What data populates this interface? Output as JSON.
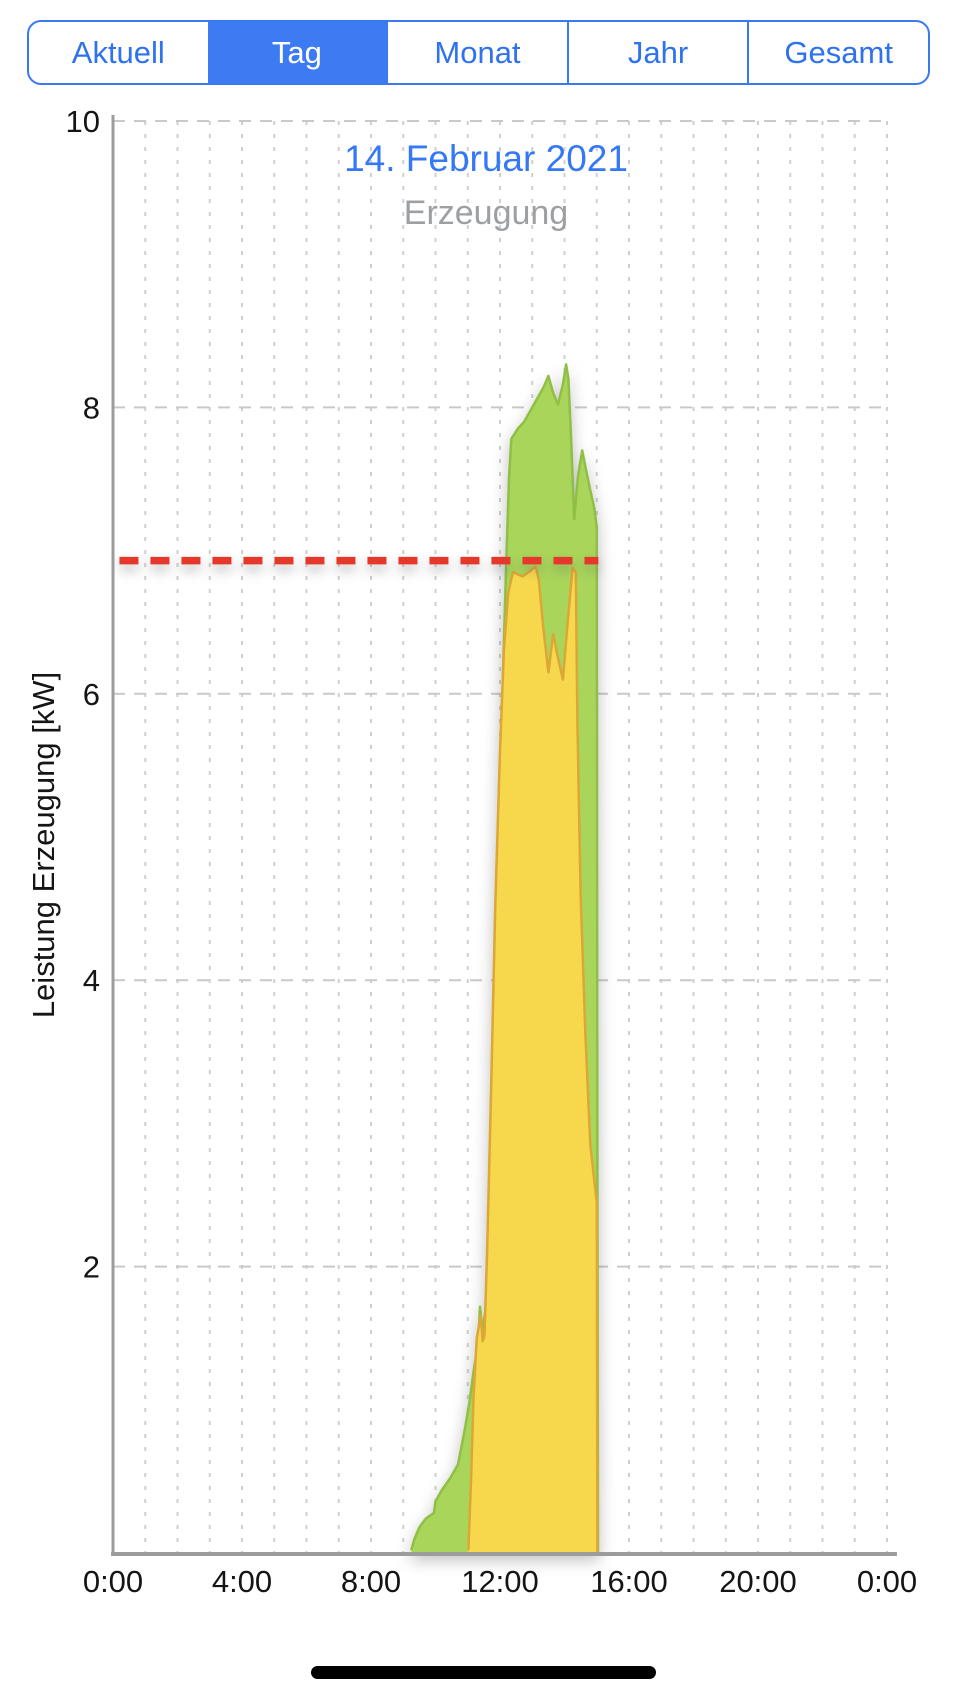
{
  "segmented_control": {
    "items": [
      {
        "label": "Aktuell",
        "selected": false
      },
      {
        "label": "Tag",
        "selected": true
      },
      {
        "label": "Monat",
        "selected": false
      },
      {
        "label": "Jahr",
        "selected": false
      },
      {
        "label": "Gesamt",
        "selected": false
      }
    ]
  },
  "chart_data": {
    "type": "area",
    "title": "14. Februar 2021",
    "subtitle": "Erzeugung",
    "ylabel": "Leistung Erzeugung [kW]",
    "xlabel": "",
    "x_unit": "hours",
    "xlim": [
      0,
      24
    ],
    "ylim": [
      0,
      10
    ],
    "grid": {
      "x_interval_hours": 1,
      "y_interval_kw": 2,
      "style": "dashed"
    },
    "x_ticks": [
      {
        "t": 0,
        "label": "0:00"
      },
      {
        "t": 4,
        "label": "4:00"
      },
      {
        "t": 8,
        "label": "8:00"
      },
      {
        "t": 12,
        "label": "12:00"
      },
      {
        "t": 16,
        "label": "16:00"
      },
      {
        "t": 20,
        "label": "20:00"
      },
      {
        "t": 24,
        "label": "0:00"
      }
    ],
    "y_ticks": [
      {
        "v": 2,
        "label": "2"
      },
      {
        "v": 4,
        "label": "4"
      },
      {
        "v": 6,
        "label": "6"
      },
      {
        "v": 8,
        "label": "8"
      },
      {
        "v": 10,
        "label": "10"
      }
    ],
    "threshold_line": {
      "name": "max-power-limit",
      "value_kw": 6.93,
      "x_start_hours": 0.2,
      "x_end_hours": 15.05,
      "color": "#E6372B",
      "style": "dashed"
    },
    "series": [
      {
        "name": "generation-total",
        "fill": "#A9D65A",
        "stroke": "#8FBF45",
        "points": [
          [
            9.25,
            0.02
          ],
          [
            9.35,
            0.1
          ],
          [
            9.5,
            0.18
          ],
          [
            9.7,
            0.24
          ],
          [
            9.95,
            0.28
          ],
          [
            10.0,
            0.36
          ],
          [
            10.2,
            0.44
          ],
          [
            10.45,
            0.52
          ],
          [
            10.7,
            0.62
          ],
          [
            10.9,
            0.85
          ],
          [
            11.05,
            1.05
          ],
          [
            11.2,
            1.3
          ],
          [
            11.32,
            1.45
          ],
          [
            11.38,
            1.72
          ],
          [
            11.45,
            1.55
          ],
          [
            11.55,
            1.7
          ],
          [
            11.65,
            2.1
          ],
          [
            11.8,
            3.1
          ],
          [
            11.95,
            4.6
          ],
          [
            12.1,
            6.2
          ],
          [
            12.2,
            6.95
          ],
          [
            12.28,
            7.5
          ],
          [
            12.35,
            7.78
          ],
          [
            12.55,
            7.85
          ],
          [
            12.75,
            7.9
          ],
          [
            12.95,
            7.98
          ],
          [
            13.15,
            8.06
          ],
          [
            13.35,
            8.14
          ],
          [
            13.5,
            8.22
          ],
          [
            13.65,
            8.1
          ],
          [
            13.8,
            8.02
          ],
          [
            13.95,
            8.16
          ],
          [
            14.05,
            8.3
          ],
          [
            14.12,
            8.2
          ],
          [
            14.2,
            7.8
          ],
          [
            14.3,
            7.22
          ],
          [
            14.42,
            7.52
          ],
          [
            14.55,
            7.7
          ],
          [
            14.68,
            7.55
          ],
          [
            14.8,
            7.42
          ],
          [
            14.92,
            7.3
          ],
          [
            15.0,
            7.16
          ],
          [
            15.02,
            2.6
          ],
          [
            15.04,
            0.0
          ]
        ]
      },
      {
        "name": "generation-overlay",
        "fill": "#F7D84D",
        "stroke": "#DCA735",
        "points": [
          [
            11.02,
            0.02
          ],
          [
            11.1,
            0.5
          ],
          [
            11.18,
            1.1
          ],
          [
            11.28,
            1.5
          ],
          [
            11.4,
            1.66
          ],
          [
            11.46,
            1.48
          ],
          [
            11.52,
            1.52
          ],
          [
            11.6,
            2.1
          ],
          [
            11.72,
            3.2
          ],
          [
            11.85,
            4.5
          ],
          [
            12.0,
            5.6
          ],
          [
            12.12,
            6.3
          ],
          [
            12.25,
            6.7
          ],
          [
            12.4,
            6.85
          ],
          [
            12.7,
            6.82
          ],
          [
            12.95,
            6.86
          ],
          [
            13.1,
            6.89
          ],
          [
            13.2,
            6.8
          ],
          [
            13.35,
            6.45
          ],
          [
            13.5,
            6.15
          ],
          [
            13.65,
            6.42
          ],
          [
            13.8,
            6.25
          ],
          [
            13.95,
            6.1
          ],
          [
            14.1,
            6.5
          ],
          [
            14.25,
            6.88
          ],
          [
            14.35,
            6.85
          ],
          [
            14.4,
            5.8
          ],
          [
            14.5,
            4.6
          ],
          [
            14.65,
            3.6
          ],
          [
            14.8,
            2.85
          ],
          [
            14.95,
            2.55
          ],
          [
            15.0,
            2.45
          ],
          [
            15.02,
            0.0
          ]
        ]
      }
    ],
    "legend_position": "none"
  },
  "colors": {
    "accent_blue": "#3478F6",
    "selected_segment_fill": "#3D7BF3",
    "segment_border": "#3B79F3",
    "threshold_red": "#E6372B",
    "series_green": "#A9D65A",
    "series_yellow": "#F7D84D",
    "grid_gray": "#CCCCCC",
    "axis_gray": "#9C9C9C",
    "subtitle_gray": "#9DA0A3"
  },
  "home_indicator": {
    "present": true
  }
}
